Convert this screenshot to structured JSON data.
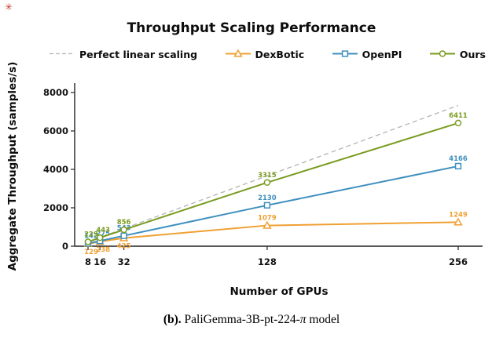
{
  "decoration": {
    "corner_mark": "✳"
  },
  "title": "Throughput Scaling Performance",
  "ylabel": "Aggregate Throughput (samples/s)",
  "xlabel": "Number of GPUs",
  "caption": {
    "label": "(b).",
    "model_prefix": " PaliGemma-3B-pt-224-",
    "pi": "π",
    "suffix": " model"
  },
  "chart_data": {
    "type": "line",
    "title": "Throughput Scaling Performance",
    "xlabel": "Number of GPUs",
    "ylabel": "Aggregate Throughput (samples/s)",
    "x": [
      8,
      16,
      32,
      128,
      256
    ],
    "xtick_labels": [
      "8",
      "16",
      "32",
      "128",
      "256"
    ],
    "yticks": [
      0,
      2000,
      4000,
      6000,
      8000
    ],
    "ylim": [
      0,
      8400
    ],
    "grid": false,
    "legend_position": "top",
    "series": [
      {
        "name": "Perfect linear scaling",
        "color": "#b3b3b3",
        "style": "dashed",
        "marker": "none",
        "show_labels": false,
        "values": [
          229,
          458,
          916,
          3664,
          7328
        ]
      },
      {
        "name": "DexBotic",
        "color": "#f0a032",
        "style": "solid",
        "marker": "triangle",
        "show_labels": true,
        "values": [
          129,
          238,
          425,
          1079,
          1249
        ]
      },
      {
        "name": "OpenPI",
        "color": "#3f8fbd",
        "style": "solid",
        "marker": "square",
        "show_labels": true,
        "values": [
          142,
          275,
          543,
          2130,
          4166
        ]
      },
      {
        "name": "Ours",
        "color": "#7a9c20",
        "style": "solid",
        "marker": "circle",
        "show_labels": true,
        "values": [
          229,
          443,
          856,
          3315,
          6411
        ]
      }
    ]
  }
}
